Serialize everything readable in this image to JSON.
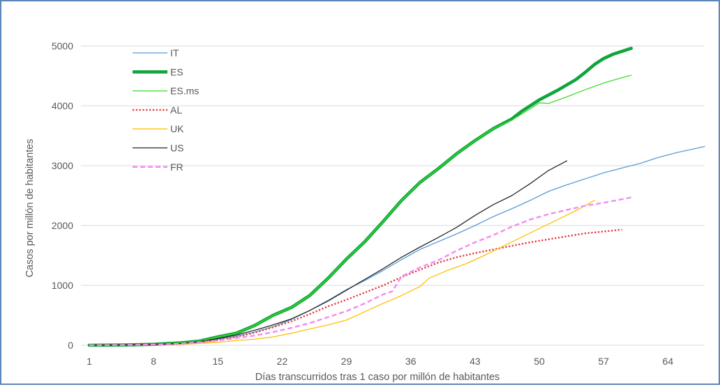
{
  "chart_data": {
    "type": "line",
    "title": "",
    "xlabel": "Días transcurridos tras 1 caso por millón de habitantes",
    "ylabel": "Casos por millón de habitantes",
    "xlim": [
      1,
      68
    ],
    "ylim": [
      0,
      5000
    ],
    "x_ticks": [
      1,
      8,
      15,
      22,
      29,
      36,
      43,
      50,
      57,
      64
    ],
    "y_ticks": [
      0,
      1000,
      2000,
      3000,
      4000,
      5000
    ],
    "grid": "horizontal",
    "legend_position": "top-left",
    "series": [
      {
        "name": "IT",
        "color": "#5b9bd5",
        "style": "solid",
        "width": "thin",
        "points": [
          [
            1,
            0
          ],
          [
            5,
            5
          ],
          [
            8,
            15
          ],
          [
            11,
            30
          ],
          [
            13,
            60
          ],
          [
            15,
            100
          ],
          [
            17,
            150
          ],
          [
            19,
            220
          ],
          [
            21,
            310
          ],
          [
            23,
            430
          ],
          [
            25,
            580
          ],
          [
            27,
            750
          ],
          [
            29,
            930
          ],
          [
            31,
            1080
          ],
          [
            33,
            1250
          ],
          [
            35,
            1430
          ],
          [
            37,
            1600
          ],
          [
            39,
            1730
          ],
          [
            41,
            1860
          ],
          [
            43,
            2000
          ],
          [
            45,
            2150
          ],
          [
            47,
            2280
          ],
          [
            49,
            2420
          ],
          [
            51,
            2570
          ],
          [
            53,
            2680
          ],
          [
            55,
            2780
          ],
          [
            57,
            2880
          ],
          [
            59,
            2960
          ],
          [
            61,
            3040
          ],
          [
            63,
            3140
          ],
          [
            65,
            3220
          ],
          [
            68,
            3320
          ]
        ]
      },
      {
        "name": "ES",
        "color": "#0fa53c",
        "style": "solid",
        "width": "thick",
        "points": [
          [
            1,
            0
          ],
          [
            5,
            5
          ],
          [
            8,
            15
          ],
          [
            11,
            40
          ],
          [
            13,
            70
          ],
          [
            15,
            140
          ],
          [
            17,
            200
          ],
          [
            19,
            330
          ],
          [
            21,
            500
          ],
          [
            23,
            630
          ],
          [
            25,
            830
          ],
          [
            27,
            1120
          ],
          [
            29,
            1440
          ],
          [
            31,
            1730
          ],
          [
            33,
            2070
          ],
          [
            35,
            2420
          ],
          [
            37,
            2720
          ],
          [
            39,
            2950
          ],
          [
            41,
            3200
          ],
          [
            43,
            3420
          ],
          [
            45,
            3620
          ],
          [
            47,
            3780
          ],
          [
            48,
            3900
          ],
          [
            50,
            4100
          ],
          [
            52,
            4260
          ],
          [
            54,
            4440
          ],
          [
            55,
            4560
          ],
          [
            56,
            4690
          ],
          [
            57,
            4790
          ],
          [
            58,
            4860
          ],
          [
            60,
            4960
          ]
        ]
      },
      {
        "name": "ES.ms",
        "color": "#3ddc2b",
        "style": "solid",
        "width": "thin",
        "points": [
          [
            1,
            0
          ],
          [
            5,
            5
          ],
          [
            8,
            15
          ],
          [
            11,
            40
          ],
          [
            13,
            70
          ],
          [
            15,
            140
          ],
          [
            17,
            200
          ],
          [
            19,
            330
          ],
          [
            21,
            500
          ],
          [
            23,
            630
          ],
          [
            25,
            830
          ],
          [
            27,
            1120
          ],
          [
            29,
            1440
          ],
          [
            31,
            1730
          ],
          [
            33,
            2070
          ],
          [
            35,
            2420
          ],
          [
            37,
            2720
          ],
          [
            39,
            2950
          ],
          [
            41,
            3200
          ],
          [
            43,
            3420
          ],
          [
            45,
            3620
          ],
          [
            47,
            3760
          ],
          [
            49,
            3950
          ],
          [
            50,
            4050
          ],
          [
            51,
            4040
          ],
          [
            53,
            4150
          ],
          [
            55,
            4270
          ],
          [
            57,
            4380
          ],
          [
            59,
            4470
          ],
          [
            60,
            4510
          ]
        ]
      },
      {
        "name": "AL",
        "color": "#e03b3b",
        "style": "dotted",
        "width": "medium",
        "points": [
          [
            1,
            0
          ],
          [
            5,
            5
          ],
          [
            8,
            10
          ],
          [
            11,
            20
          ],
          [
            13,
            40
          ],
          [
            15,
            90
          ],
          [
            17,
            140
          ],
          [
            19,
            210
          ],
          [
            21,
            300
          ],
          [
            23,
            400
          ],
          [
            25,
            520
          ],
          [
            27,
            650
          ],
          [
            29,
            760
          ],
          [
            31,
            880
          ],
          [
            33,
            1000
          ],
          [
            35,
            1140
          ],
          [
            37,
            1260
          ],
          [
            39,
            1380
          ],
          [
            41,
            1470
          ],
          [
            43,
            1540
          ],
          [
            45,
            1600
          ],
          [
            47,
            1660
          ],
          [
            49,
            1720
          ],
          [
            51,
            1770
          ],
          [
            53,
            1820
          ],
          [
            55,
            1870
          ],
          [
            57,
            1900
          ],
          [
            59,
            1930
          ]
        ]
      },
      {
        "name": "UK",
        "color": "#ffc000",
        "style": "solid",
        "width": "thin",
        "points": [
          [
            1,
            0
          ],
          [
            5,
            5
          ],
          [
            8,
            10
          ],
          [
            11,
            20
          ],
          [
            13,
            30
          ],
          [
            15,
            50
          ],
          [
            17,
            80
          ],
          [
            19,
            100
          ],
          [
            21,
            140
          ],
          [
            23,
            200
          ],
          [
            25,
            270
          ],
          [
            27,
            340
          ],
          [
            29,
            420
          ],
          [
            31,
            560
          ],
          [
            33,
            700
          ],
          [
            35,
            830
          ],
          [
            37,
            980
          ],
          [
            38,
            1120
          ],
          [
            40,
            1250
          ],
          [
            42,
            1360
          ],
          [
            44,
            1500
          ],
          [
            46,
            1650
          ],
          [
            48,
            1800
          ],
          [
            50,
            1950
          ],
          [
            52,
            2100
          ],
          [
            54,
            2250
          ],
          [
            56,
            2420
          ]
        ]
      },
      {
        "name": "US",
        "color": "#262626",
        "style": "solid",
        "width": "thin",
        "points": [
          [
            1,
            0
          ],
          [
            5,
            5
          ],
          [
            8,
            15
          ],
          [
            11,
            30
          ],
          [
            13,
            60
          ],
          [
            15,
            110
          ],
          [
            17,
            170
          ],
          [
            19,
            250
          ],
          [
            21,
            340
          ],
          [
            23,
            440
          ],
          [
            25,
            580
          ],
          [
            27,
            740
          ],
          [
            29,
            920
          ],
          [
            31,
            1100
          ],
          [
            33,
            1280
          ],
          [
            35,
            1470
          ],
          [
            37,
            1640
          ],
          [
            39,
            1800
          ],
          [
            41,
            1970
          ],
          [
            43,
            2170
          ],
          [
            45,
            2350
          ],
          [
            47,
            2500
          ],
          [
            49,
            2700
          ],
          [
            51,
            2920
          ],
          [
            53,
            3080
          ]
        ]
      },
      {
        "name": "FR",
        "color": "#f48af2",
        "style": "dashed",
        "width": "medium",
        "points": [
          [
            1,
            0
          ],
          [
            5,
            5
          ],
          [
            8,
            10
          ],
          [
            11,
            25
          ],
          [
            13,
            50
          ],
          [
            15,
            80
          ],
          [
            17,
            120
          ],
          [
            19,
            160
          ],
          [
            21,
            220
          ],
          [
            23,
            290
          ],
          [
            25,
            370
          ],
          [
            27,
            470
          ],
          [
            29,
            570
          ],
          [
            31,
            700
          ],
          [
            33,
            850
          ],
          [
            34,
            900
          ],
          [
            35,
            1150
          ],
          [
            37,
            1300
          ],
          [
            39,
            1420
          ],
          [
            41,
            1580
          ],
          [
            43,
            1720
          ],
          [
            45,
            1840
          ],
          [
            47,
            1980
          ],
          [
            49,
            2100
          ],
          [
            51,
            2190
          ],
          [
            53,
            2260
          ],
          [
            55,
            2330
          ],
          [
            57,
            2380
          ],
          [
            59,
            2440
          ],
          [
            60,
            2470
          ]
        ]
      }
    ]
  }
}
